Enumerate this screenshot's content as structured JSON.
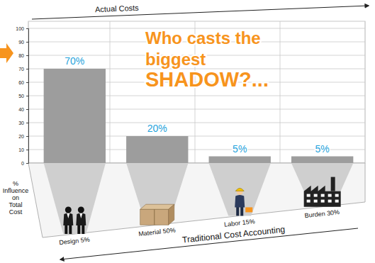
{
  "chart_data": {
    "type": "bar",
    "title": "Who casts the biggest SHADOW?...",
    "categories": [
      "Design 5%",
      "Material 50%",
      "Labor 15%",
      "Burden 30%"
    ],
    "series": [
      {
        "name": "Actual Costs",
        "color": "#9d9d9d",
        "values": [
          70,
          20,
          5,
          5
        ],
        "value_labels": [
          "70%",
          "20%",
          "5%",
          "5%"
        ]
      }
    ],
    "x_label": "Traditional Cost Accounting",
    "y_label": "% Influence on Total Cost",
    "ylim": [
      0,
      100
    ],
    "yticks": [
      0,
      10,
      20,
      30,
      40,
      50,
      60,
      70,
      80,
      90,
      100
    ],
    "grid": true,
    "data_labels": true
  }
}
